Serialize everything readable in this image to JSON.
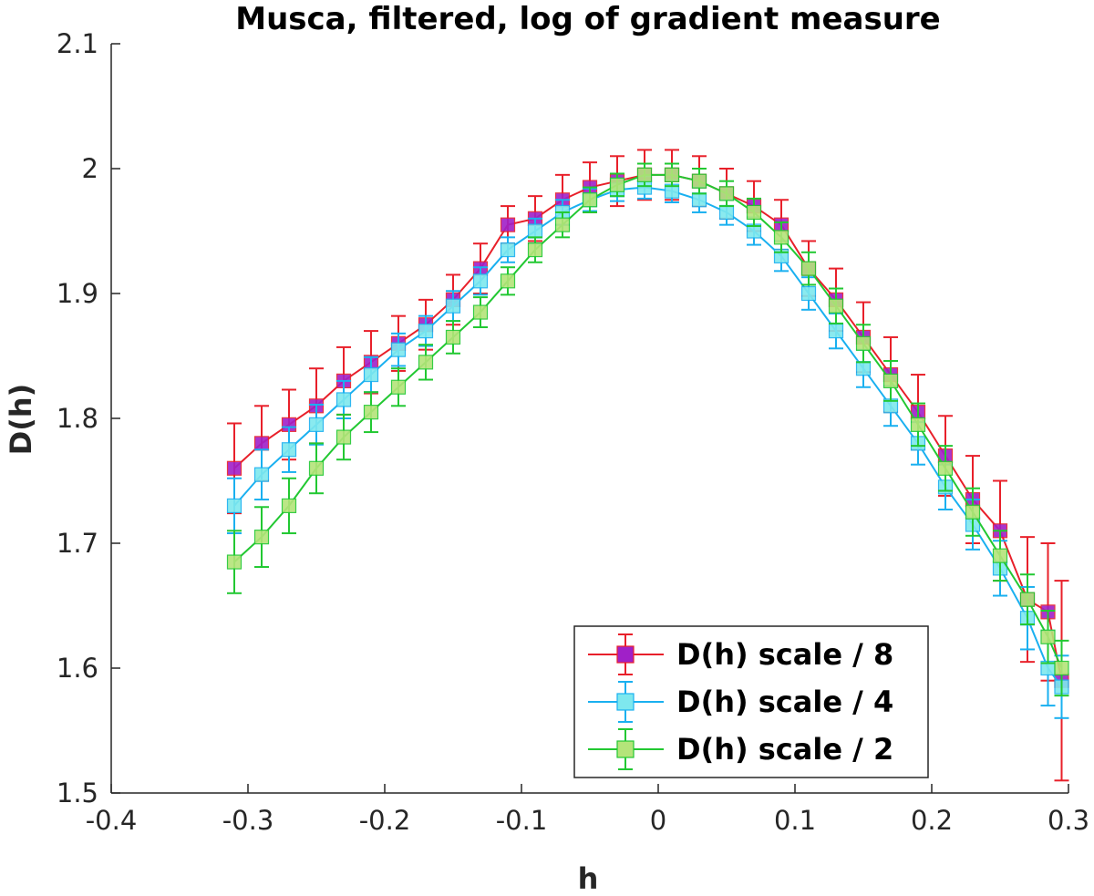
{
  "chart_data": {
    "type": "scatter",
    "title": "Musca, filtered, log of gradient measure",
    "xlabel": "h",
    "ylabel": "D(h)",
    "xlim": [
      -0.4,
      0.3
    ],
    "ylim": [
      1.5,
      2.1
    ],
    "xticks": [
      -0.4,
      -0.3,
      -0.2,
      -0.1,
      0,
      0.1,
      0.2,
      0.3
    ],
    "xtick_labels": [
      "-0.4",
      "-0.3",
      "-0.2",
      "-0.1",
      "0",
      "0.1",
      "0.2",
      "0.3"
    ],
    "yticks": [
      1.5,
      1.6,
      1.7,
      1.8,
      1.9,
      2.0,
      2.1
    ],
    "ytick_labels": [
      "1.5",
      "1.6",
      "1.7",
      "1.8",
      "1.9",
      "2",
      "2.1"
    ],
    "grid": false,
    "legend_position": "bottom-right",
    "series": [
      {
        "name": "D(h) scale / 8",
        "line_color": "#e8202a",
        "marker_color": "#a020c8",
        "points": [
          {
            "x": -0.31,
            "y": 1.76,
            "err": 0.036
          },
          {
            "x": -0.29,
            "y": 1.78,
            "err": 0.03
          },
          {
            "x": -0.27,
            "y": 1.795,
            "err": 0.028
          },
          {
            "x": -0.25,
            "y": 1.81,
            "err": 0.03
          },
          {
            "x": -0.23,
            "y": 1.83,
            "err": 0.027
          },
          {
            "x": -0.21,
            "y": 1.845,
            "err": 0.025
          },
          {
            "x": -0.19,
            "y": 1.86,
            "err": 0.022
          },
          {
            "x": -0.17,
            "y": 1.875,
            "err": 0.02
          },
          {
            "x": -0.15,
            "y": 1.895,
            "err": 0.02
          },
          {
            "x": -0.13,
            "y": 1.92,
            "err": 0.02
          },
          {
            "x": -0.11,
            "y": 1.955,
            "err": 0.015
          },
          {
            "x": -0.09,
            "y": 1.96,
            "err": 0.018
          },
          {
            "x": -0.07,
            "y": 1.975,
            "err": 0.02
          },
          {
            "x": -0.05,
            "y": 1.985,
            "err": 0.02
          },
          {
            "x": -0.03,
            "y": 1.99,
            "err": 0.02
          },
          {
            "x": -0.01,
            "y": 1.995,
            "err": 0.02
          },
          {
            "x": 0.01,
            "y": 1.995,
            "err": 0.02
          },
          {
            "x": 0.03,
            "y": 1.99,
            "err": 0.02
          },
          {
            "x": 0.05,
            "y": 1.98,
            "err": 0.02
          },
          {
            "x": 0.07,
            "y": 1.97,
            "err": 0.02
          },
          {
            "x": 0.09,
            "y": 1.955,
            "err": 0.02
          },
          {
            "x": 0.11,
            "y": 1.92,
            "err": 0.022
          },
          {
            "x": 0.13,
            "y": 1.895,
            "err": 0.025
          },
          {
            "x": 0.15,
            "y": 1.865,
            "err": 0.028
          },
          {
            "x": 0.17,
            "y": 1.835,
            "err": 0.03
          },
          {
            "x": 0.19,
            "y": 1.805,
            "err": 0.03
          },
          {
            "x": 0.21,
            "y": 1.77,
            "err": 0.032
          },
          {
            "x": 0.23,
            "y": 1.735,
            "err": 0.035
          },
          {
            "x": 0.25,
            "y": 1.71,
            "err": 0.04
          },
          {
            "x": 0.27,
            "y": 1.655,
            "err": 0.05
          },
          {
            "x": 0.285,
            "y": 1.645,
            "err": 0.055
          },
          {
            "x": 0.295,
            "y": 1.59,
            "err": 0.08
          }
        ]
      },
      {
        "name": "D(h) scale / 4",
        "line_color": "#1ab0f0",
        "marker_color": "#7ee8ee",
        "points": [
          {
            "x": -0.31,
            "y": 1.73,
            "err": 0.022
          },
          {
            "x": -0.29,
            "y": 1.755,
            "err": 0.02
          },
          {
            "x": -0.27,
            "y": 1.775,
            "err": 0.018
          },
          {
            "x": -0.25,
            "y": 1.795,
            "err": 0.016
          },
          {
            "x": -0.23,
            "y": 1.815,
            "err": 0.015
          },
          {
            "x": -0.21,
            "y": 1.835,
            "err": 0.014
          },
          {
            "x": -0.19,
            "y": 1.855,
            "err": 0.013
          },
          {
            "x": -0.17,
            "y": 1.87,
            "err": 0.012
          },
          {
            "x": -0.15,
            "y": 1.89,
            "err": 0.012
          },
          {
            "x": -0.13,
            "y": 1.91,
            "err": 0.011
          },
          {
            "x": -0.11,
            "y": 1.935,
            "err": 0.01
          },
          {
            "x": -0.09,
            "y": 1.95,
            "err": 0.01
          },
          {
            "x": -0.07,
            "y": 1.965,
            "err": 0.01
          },
          {
            "x": -0.05,
            "y": 1.975,
            "err": 0.009
          },
          {
            "x": -0.03,
            "y": 1.983,
            "err": 0.009
          },
          {
            "x": -0.01,
            "y": 1.985,
            "err": 0.009
          },
          {
            "x": 0.01,
            "y": 1.982,
            "err": 0.009
          },
          {
            "x": 0.03,
            "y": 1.975,
            "err": 0.01
          },
          {
            "x": 0.05,
            "y": 1.965,
            "err": 0.01
          },
          {
            "x": 0.07,
            "y": 1.95,
            "err": 0.011
          },
          {
            "x": 0.09,
            "y": 1.93,
            "err": 0.012
          },
          {
            "x": 0.11,
            "y": 1.9,
            "err": 0.013
          },
          {
            "x": 0.13,
            "y": 1.87,
            "err": 0.014
          },
          {
            "x": 0.15,
            "y": 1.84,
            "err": 0.015
          },
          {
            "x": 0.17,
            "y": 1.81,
            "err": 0.016
          },
          {
            "x": 0.19,
            "y": 1.78,
            "err": 0.017
          },
          {
            "x": 0.21,
            "y": 1.745,
            "err": 0.018
          },
          {
            "x": 0.23,
            "y": 1.715,
            "err": 0.02
          },
          {
            "x": 0.25,
            "y": 1.68,
            "err": 0.022
          },
          {
            "x": 0.27,
            "y": 1.64,
            "err": 0.025
          },
          {
            "x": 0.285,
            "y": 1.6,
            "err": 0.03
          },
          {
            "x": 0.295,
            "y": 1.585,
            "err": 0.025
          }
        ]
      },
      {
        "name": "D(h) scale / 2",
        "line_color": "#22c832",
        "marker_color": "#b4e47a",
        "points": [
          {
            "x": -0.31,
            "y": 1.685,
            "err": 0.025
          },
          {
            "x": -0.29,
            "y": 1.705,
            "err": 0.024
          },
          {
            "x": -0.27,
            "y": 1.73,
            "err": 0.022
          },
          {
            "x": -0.25,
            "y": 1.76,
            "err": 0.02
          },
          {
            "x": -0.23,
            "y": 1.785,
            "err": 0.018
          },
          {
            "x": -0.21,
            "y": 1.805,
            "err": 0.016
          },
          {
            "x": -0.19,
            "y": 1.825,
            "err": 0.015
          },
          {
            "x": -0.17,
            "y": 1.845,
            "err": 0.014
          },
          {
            "x": -0.15,
            "y": 1.865,
            "err": 0.013
          },
          {
            "x": -0.13,
            "y": 1.885,
            "err": 0.012
          },
          {
            "x": -0.11,
            "y": 1.91,
            "err": 0.011
          },
          {
            "x": -0.09,
            "y": 1.935,
            "err": 0.01
          },
          {
            "x": -0.07,
            "y": 1.955,
            "err": 0.01
          },
          {
            "x": -0.05,
            "y": 1.975,
            "err": 0.01
          },
          {
            "x": -0.03,
            "y": 1.987,
            "err": 0.009
          },
          {
            "x": -0.01,
            "y": 1.995,
            "err": 0.009
          },
          {
            "x": 0.01,
            "y": 1.995,
            "err": 0.009
          },
          {
            "x": 0.03,
            "y": 1.99,
            "err": 0.01
          },
          {
            "x": 0.05,
            "y": 1.98,
            "err": 0.01
          },
          {
            "x": 0.07,
            "y": 1.965,
            "err": 0.011
          },
          {
            "x": 0.09,
            "y": 1.945,
            "err": 0.012
          },
          {
            "x": 0.11,
            "y": 1.92,
            "err": 0.013
          },
          {
            "x": 0.13,
            "y": 1.89,
            "err": 0.014
          },
          {
            "x": 0.15,
            "y": 1.86,
            "err": 0.015
          },
          {
            "x": 0.17,
            "y": 1.83,
            "err": 0.016
          },
          {
            "x": 0.19,
            "y": 1.795,
            "err": 0.017
          },
          {
            "x": 0.21,
            "y": 1.76,
            "err": 0.018
          },
          {
            "x": 0.23,
            "y": 1.725,
            "err": 0.019
          },
          {
            "x": 0.25,
            "y": 1.69,
            "err": 0.02
          },
          {
            "x": 0.27,
            "y": 1.655,
            "err": 0.02
          },
          {
            "x": 0.285,
            "y": 1.625,
            "err": 0.021
          },
          {
            "x": 0.295,
            "y": 1.6,
            "err": 0.022
          }
        ]
      }
    ]
  }
}
